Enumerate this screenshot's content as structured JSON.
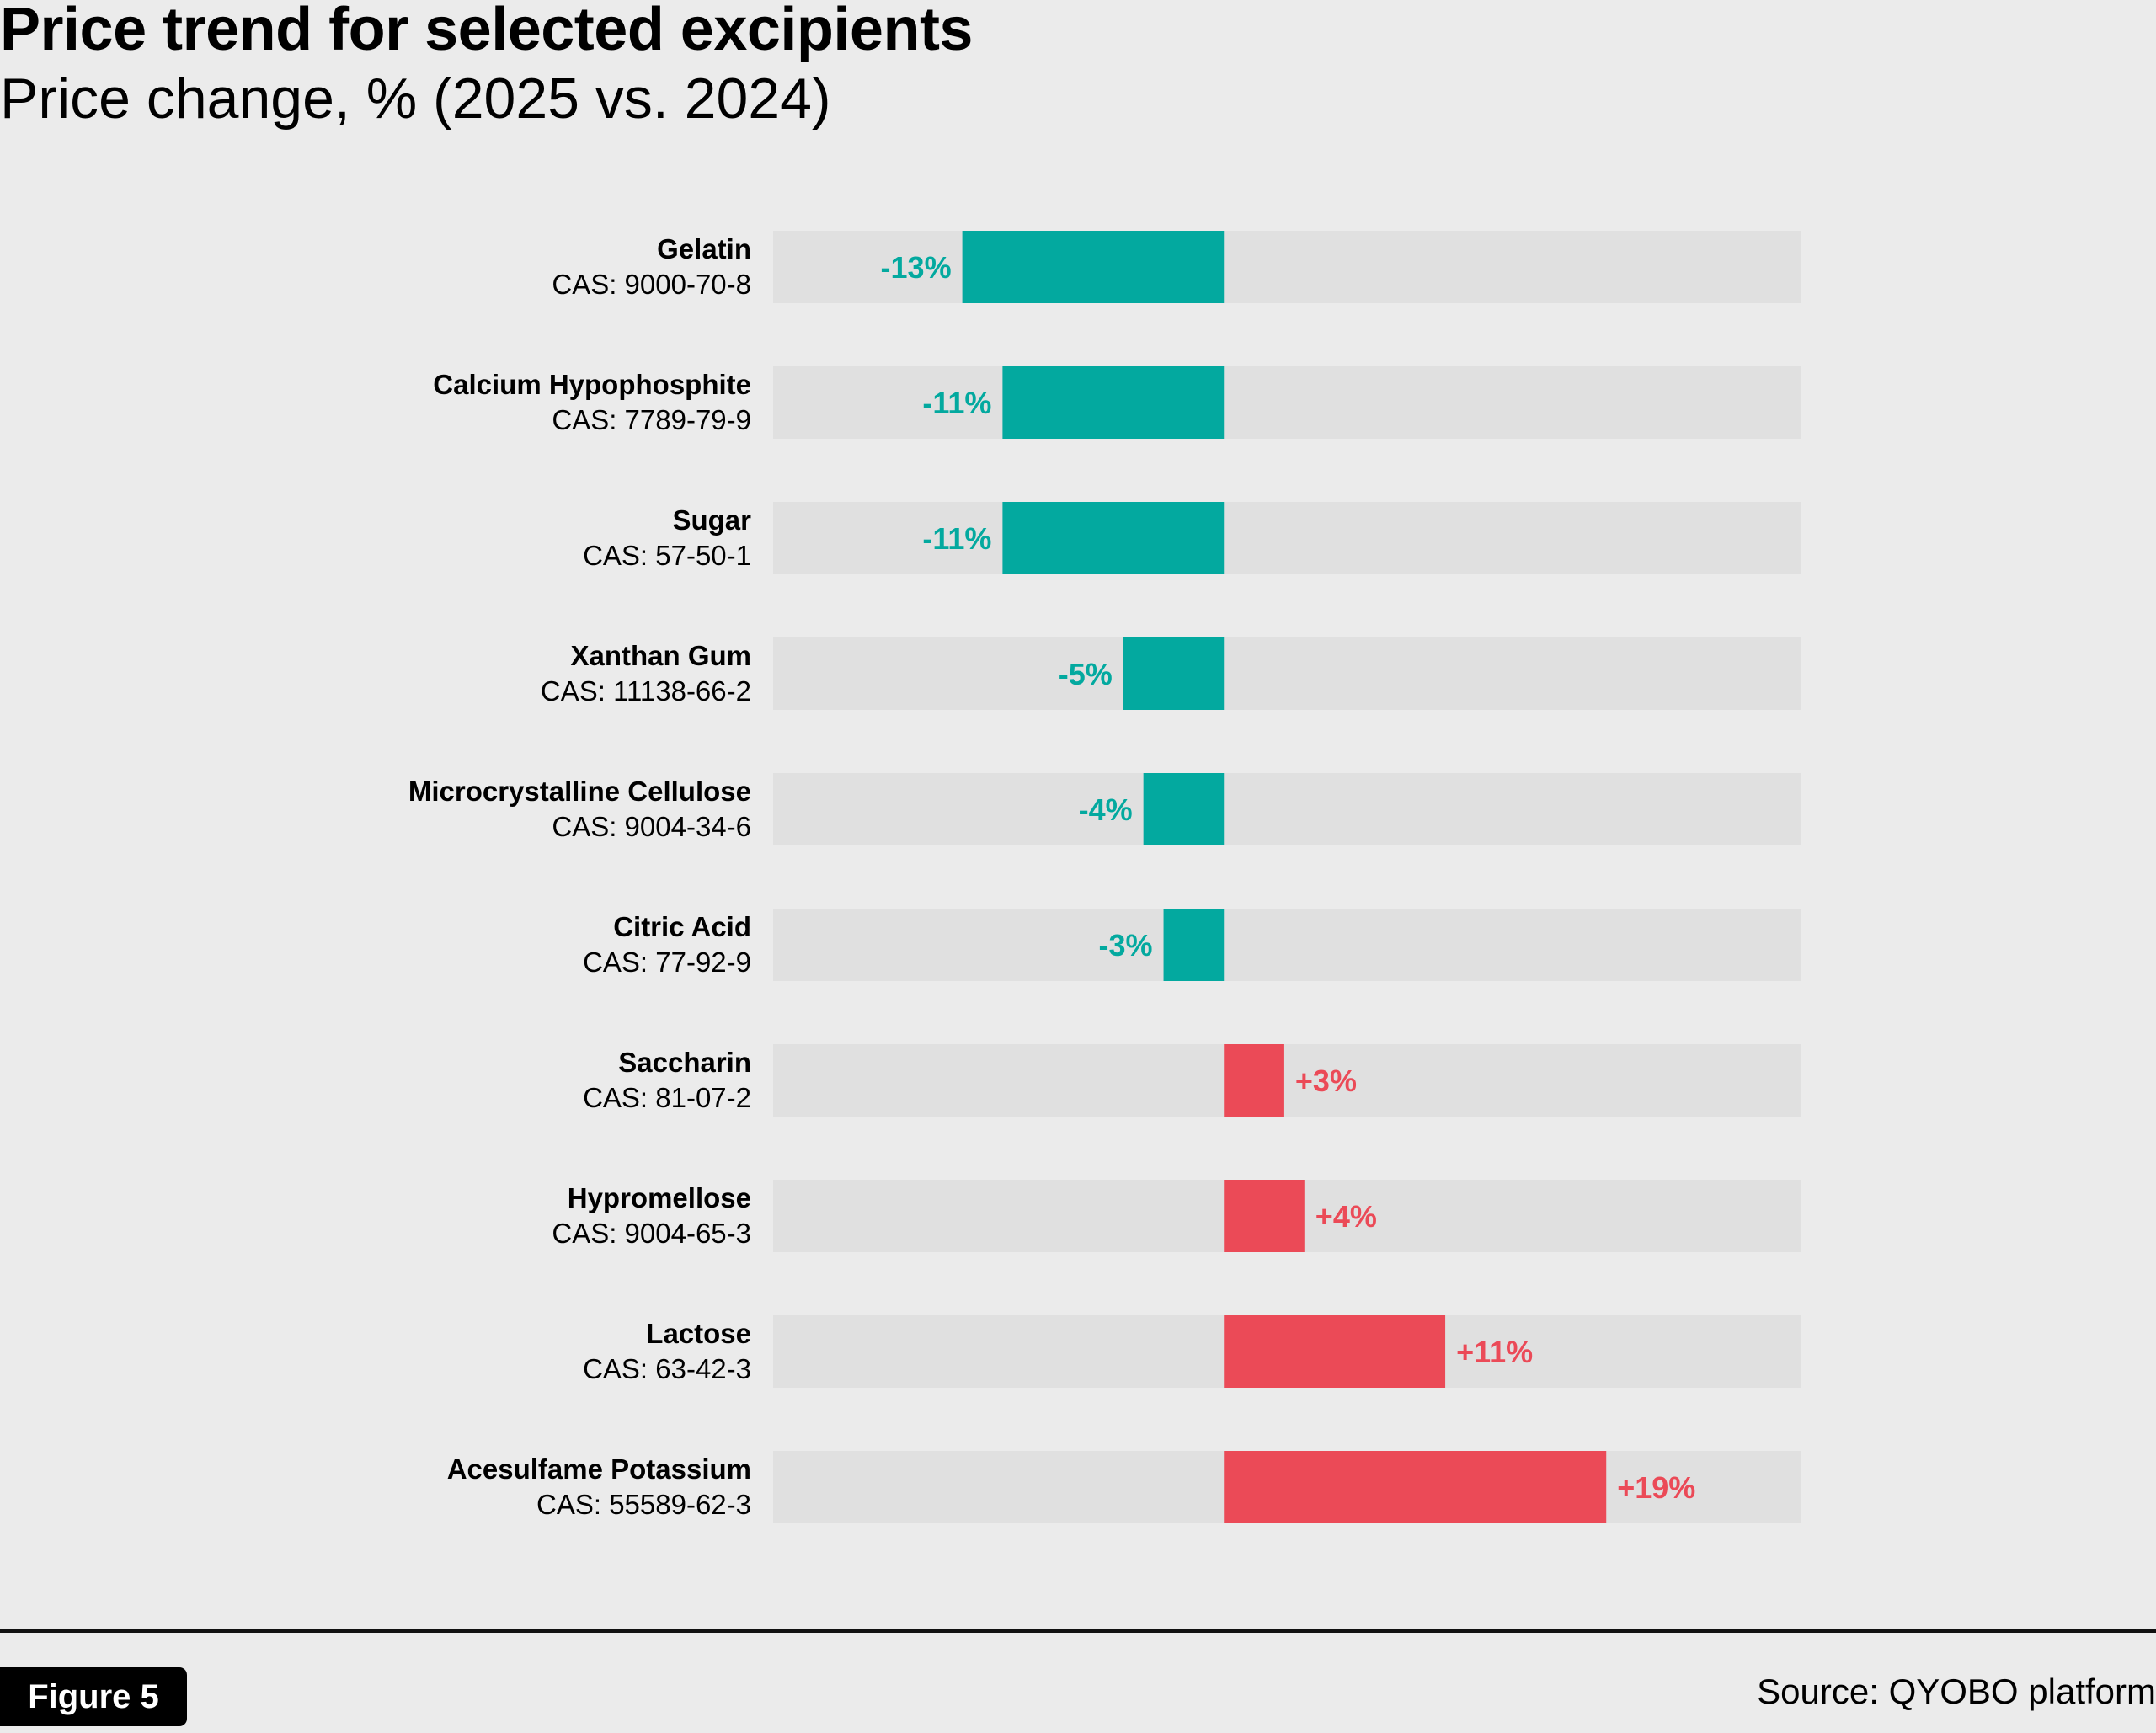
{
  "chart_data": {
    "type": "bar",
    "orientation": "horizontal",
    "title": "Price trend for selected excipients",
    "subtitle": "Price change, % (2025 vs. 2024)",
    "categories": [
      "Gelatin",
      "Calcium Hypophosphite",
      "Sugar",
      "Xanthan Gum",
      "Microcrystalline Cellulose",
      "Citric Acid",
      "Saccharin",
      "Hypromellose",
      "Lactose",
      "Acesulfame Potassium"
    ],
    "cas": [
      "CAS: 9000-70-8",
      "CAS: 7789-79-9",
      "CAS: 57-50-1",
      "CAS: 11138-66-2",
      "CAS: 9004-34-6",
      "CAS: 77-92-9",
      "CAS: 81-07-2",
      "CAS: 9004-65-3",
      "CAS: 63-42-3",
      "CAS: 55589-62-3"
    ],
    "values": [
      -13,
      -11,
      -11,
      -5,
      -4,
      -3,
      3,
      4,
      11,
      19
    ],
    "labels": [
      "-13%",
      "-11%",
      "-11%",
      "-5%",
      "-4%",
      "-3%",
      "+3%",
      "+4%",
      "+11%",
      "+19%"
    ],
    "xlim": [
      -22.4,
      28.7
    ],
    "grid": false,
    "colors": {
      "negative": "#03a99f",
      "positive": "#eb4a57",
      "track": "#e0e0e0",
      "background": "#ebebeb"
    }
  },
  "footer": {
    "figure_label": "Figure 5",
    "source": "Source: QYOBO platform"
  }
}
